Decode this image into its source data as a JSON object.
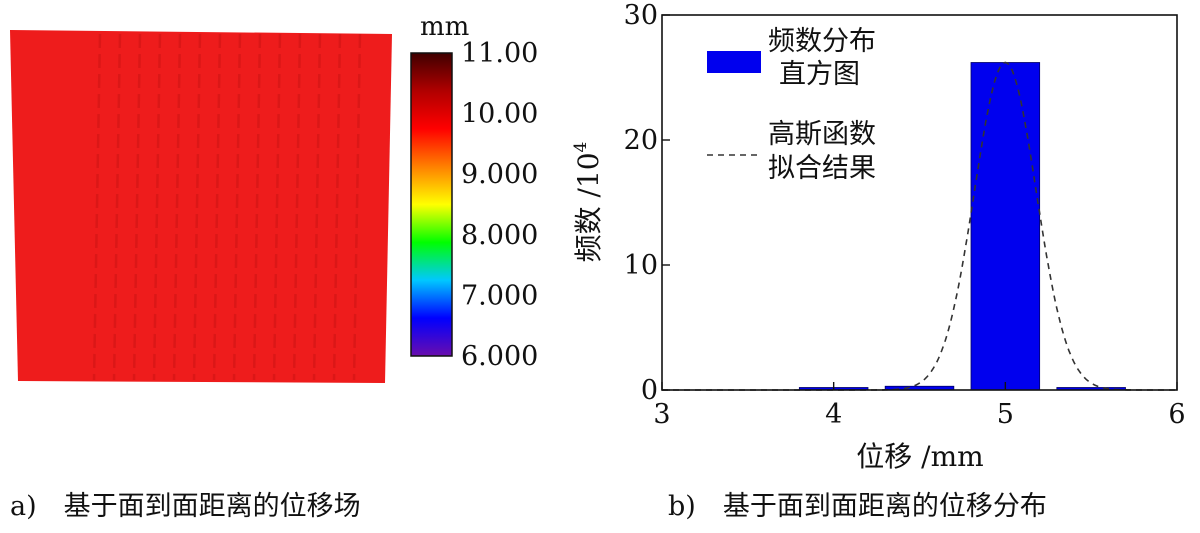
{
  "left_panel": {
    "caption": "a)　基于面到面距离的位移场",
    "colorbar": {
      "unit": "mm",
      "ticks": [
        "11.00",
        "10.00",
        "9.000",
        "8.000",
        "7.000",
        "6.000"
      ],
      "tick_values": [
        11,
        10,
        9,
        8,
        7,
        6
      ],
      "range": [
        6,
        11
      ],
      "colors": [
        "#6a0dad",
        "#0000ff",
        "#00c8ff",
        "#00ff00",
        "#ffff00",
        "#ff8000",
        "#ff0000",
        "#b00000",
        "#400000"
      ]
    },
    "field": {
      "base_color": "#ee1c1c",
      "stripe_color": "#cc1414",
      "value_mm": 10.0
    }
  },
  "chart_data": {
    "type": "bar",
    "caption": "b)　基于面到面距离的位移分布",
    "xlabel": "位移 /mm",
    "ylabel": "频数 /10",
    "ylabel_exponent": "4",
    "xlim": [
      3,
      6
    ],
    "ylim": [
      0,
      30
    ],
    "xticks": [
      3,
      4,
      5,
      6
    ],
    "yticks": [
      0,
      10,
      20,
      30
    ],
    "bars": [
      {
        "x0": 3.8,
        "x1": 4.2,
        "value": 0.1
      },
      {
        "x0": 4.3,
        "x1": 4.7,
        "value": 0.3
      },
      {
        "x0": 4.8,
        "x1": 5.2,
        "value": 26.2
      },
      {
        "x0": 5.3,
        "x1": 5.7,
        "value": 0.1
      }
    ],
    "gauss": {
      "mean": 5.0,
      "sigma": 0.18,
      "peak": 26.2
    },
    "legend": {
      "position": "top-left",
      "hist_label_line1": "频数分布",
      "hist_label_line2": "直方图",
      "fit_label_line1": "高斯函数",
      "fit_label_line2": "拟合结果"
    },
    "colors": {
      "bar": "#0000ee",
      "fit": "#333333"
    }
  }
}
